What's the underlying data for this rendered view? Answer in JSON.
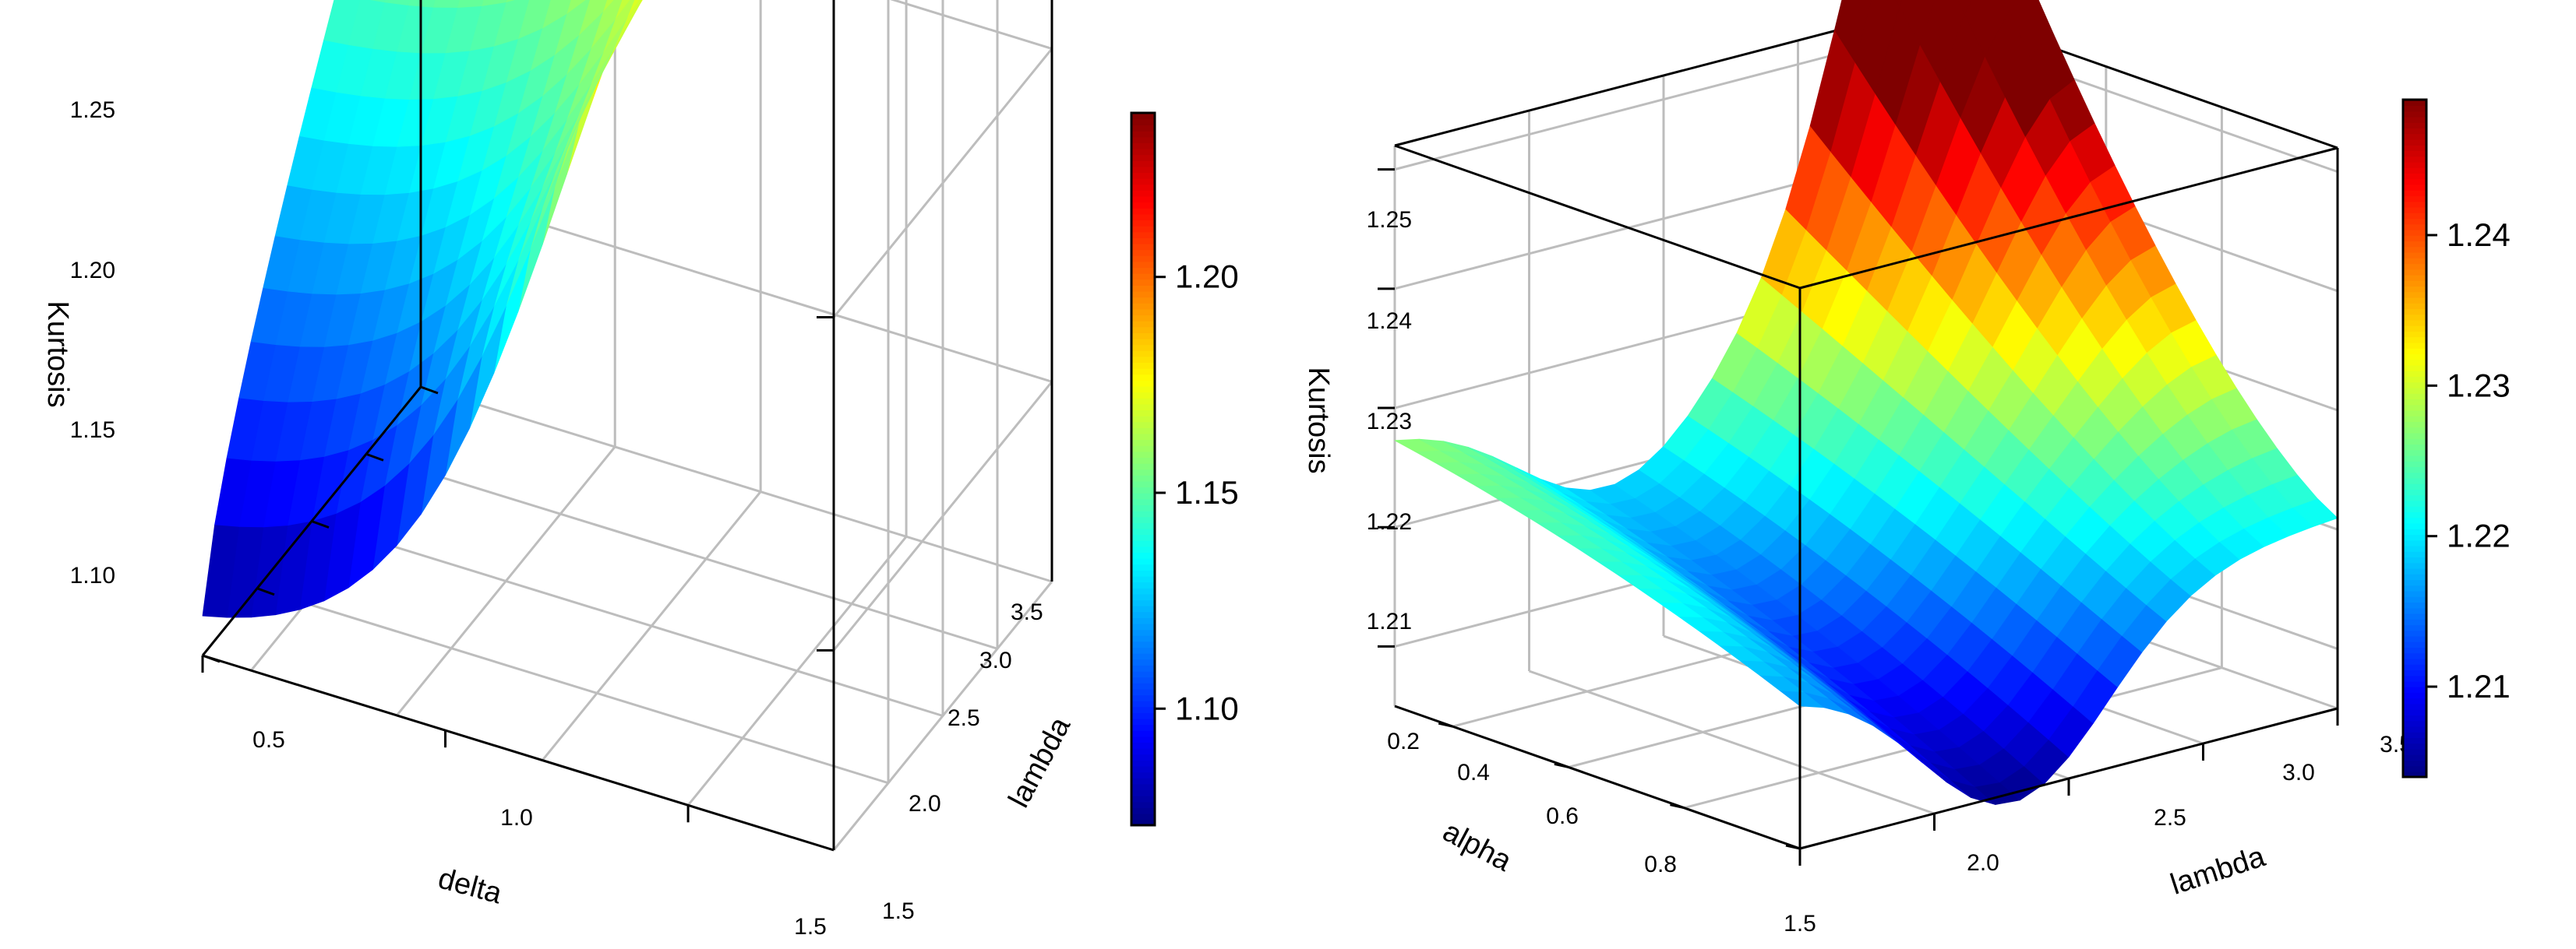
{
  "colormap": [
    "#00007f",
    "#0000ff",
    "#007fff",
    "#00ffff",
    "#7fff7f",
    "#ffff00",
    "#ff7f00",
    "#ff0000",
    "#7f0000"
  ],
  "chart_data": [
    {
      "type": "surface",
      "xlabel": "delta",
      "ylabel": "lambda",
      "zlabel": "Kurtosis",
      "x_range": [
        0.2,
        1.5
      ],
      "y_range": [
        1.5,
        3.5
      ],
      "z_range": [
        1.07,
        1.25
      ],
      "x_ticks": [
        "0.5",
        "1.0",
        "1.5"
      ],
      "y_ticks": [
        "1.5",
        "2.0",
        "2.5",
        "3.0",
        "3.5"
      ],
      "z_ticks": [
        "1.10",
        "1.15",
        "1.20",
        "1.25"
      ],
      "colorbar_ticks": [
        "1.10",
        "1.15",
        "1.20"
      ],
      "colorbar_range": [
        1.073,
        1.238
      ],
      "grid": true,
      "surface_summary": {
        "max": 1.245,
        "max_at": {
          "delta": 0.2,
          "lambda": 1.5
        },
        "min": 1.073,
        "min_at": {
          "delta": 1.5,
          "lambda": 1.5
        },
        "value_at_delta_0.2_lambda_3.5": 1.22,
        "value_at_delta_1.5_lambda_3.5": 1.175
      }
    },
    {
      "type": "surface",
      "xlabel": "alpha",
      "ylabel": "lambda",
      "zlabel": "Kurtosis",
      "x_range": [
        0.2,
        0.9
      ],
      "y_range": [
        1.5,
        3.5
      ],
      "z_range": [
        1.205,
        1.252
      ],
      "x_ticks": [
        "0.2",
        "0.4",
        "0.6",
        "0.8"
      ],
      "y_ticks": [
        "1.5",
        "2.0",
        "2.5",
        "3.0",
        "3.5"
      ],
      "z_ticks": [
        "1.21",
        "1.22",
        "1.23",
        "1.24",
        "1.25"
      ],
      "colorbar_ticks": [
        "1.21",
        "1.22",
        "1.23",
        "1.24"
      ],
      "colorbar_range": [
        1.204,
        1.249
      ],
      "grid": true,
      "surface_summary": {
        "max": 1.249,
        "max_at": {
          "alpha": 0.9,
          "lambda": 3.5
        },
        "min": 1.206,
        "min_at": {
          "alpha": 0.2,
          "lambda": 2.3
        },
        "value_at_alpha_0.2_lambda_3.5": 1.22,
        "value_at_alpha_0.2_lambda_1.5": 1.228
      }
    }
  ]
}
